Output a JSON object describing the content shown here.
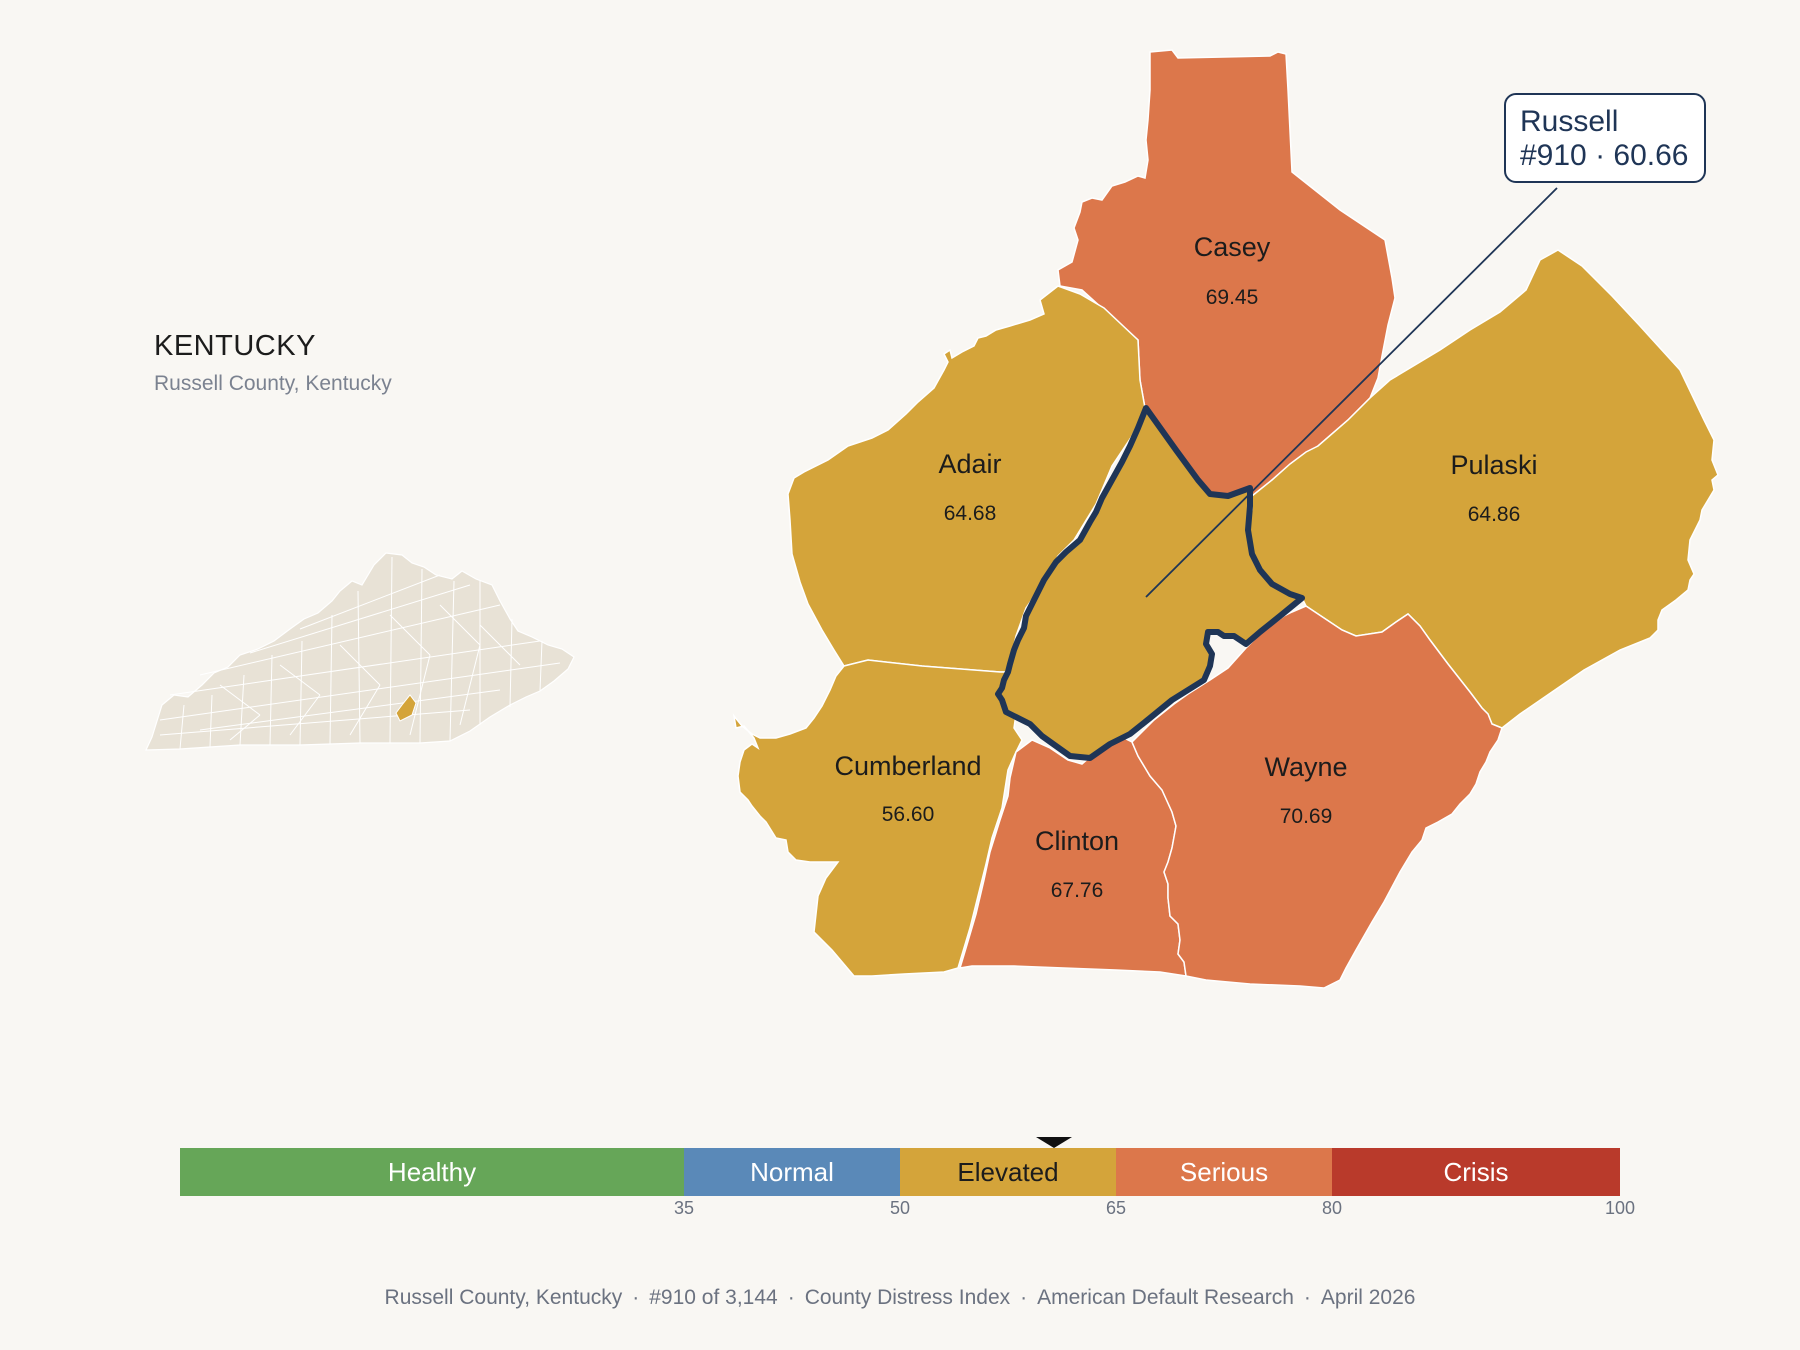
{
  "header": {
    "state": "KENTUCKY",
    "subtitle": "Russell County, Kentucky"
  },
  "callout": {
    "name": "Russell",
    "detail": "#910 · 60.66"
  },
  "focus_county": {
    "name": "Russell",
    "rank": 910,
    "score": 60.66,
    "category": "Elevated"
  },
  "counties": [
    {
      "id": "casey",
      "name": "Casey",
      "value": "69.45",
      "category": "Serious"
    },
    {
      "id": "adair",
      "name": "Adair",
      "value": "64.68",
      "category": "Elevated"
    },
    {
      "id": "pulaski",
      "name": "Pulaski",
      "value": "64.86",
      "category": "Elevated"
    },
    {
      "id": "cumberland",
      "name": "Cumberland",
      "value": "56.60",
      "category": "Elevated"
    },
    {
      "id": "clinton",
      "name": "Clinton",
      "value": "67.76",
      "category": "Serious"
    },
    {
      "id": "wayne",
      "name": "Wayne",
      "value": "70.69",
      "category": "Serious"
    }
  ],
  "colors": {
    "elevated": "#d4a43a",
    "serious": "#dc774b",
    "border": "#1f3556",
    "inset_fill": "#e8e2d6",
    "inset_highlight": "#d4a43a"
  },
  "scale": {
    "segments": [
      {
        "label": "Healthy",
        "from": 0,
        "to": 35,
        "color": "#66a658",
        "text_color": "#ffffff"
      },
      {
        "label": "Normal",
        "from": 35,
        "to": 50,
        "color": "#5a89b8",
        "text_color": "#ffffff"
      },
      {
        "label": "Elevated",
        "from": 50,
        "to": 65,
        "color": "#d4a43a",
        "text_color": "#1c1c1c"
      },
      {
        "label": "Serious",
        "from": 65,
        "to": 80,
        "color": "#dc774b",
        "text_color": "#ffffff"
      },
      {
        "label": "Crisis",
        "from": 80,
        "to": 100,
        "color": "#b93a2b",
        "text_color": "#ffffff"
      }
    ],
    "ticks": [
      "35",
      "50",
      "65",
      "80",
      "100"
    ],
    "marker_value": 60.66
  },
  "footer": {
    "items": [
      "Russell County, Kentucky",
      "#910 of 3,144",
      "County Distress Index",
      "American Default Research",
      "April 2026"
    ],
    "separator": "·"
  }
}
